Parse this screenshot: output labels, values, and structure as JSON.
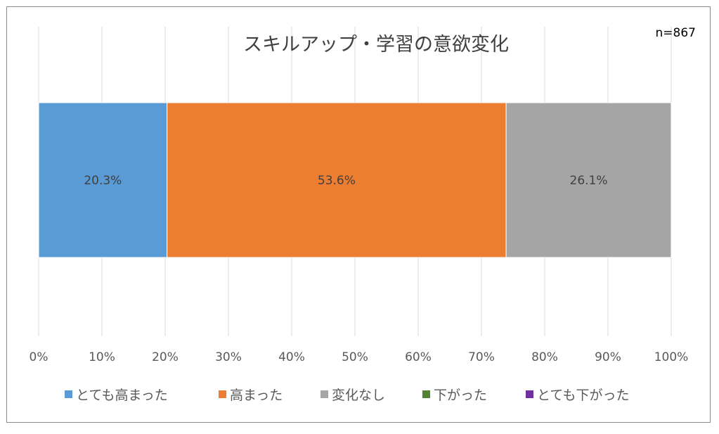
{
  "chart_data": {
    "type": "bar",
    "orientation": "horizontal",
    "stacked": true,
    "title": "スキルアップ・学習の意欲変化",
    "note": "n=867",
    "xlim": [
      0,
      100
    ],
    "x_ticks": [
      "0%",
      "10%",
      "20%",
      "30%",
      "40%",
      "50%",
      "60%",
      "70%",
      "80%",
      "90%",
      "100%"
    ],
    "grid": true,
    "legend_position": "bottom",
    "series": [
      {
        "name": "とても高まった",
        "value": 20.3,
        "label": "20.3%",
        "color": "#5b9bd5"
      },
      {
        "name": "高まった",
        "value": 53.6,
        "label": "53.6%",
        "color": "#ed7d31"
      },
      {
        "name": "変化なし",
        "value": 26.1,
        "label": "26.1%",
        "color": "#a5a5a5"
      },
      {
        "name": "下がった",
        "value": 0,
        "label": "",
        "color": "#548235"
      },
      {
        "name": "とても下がった",
        "value": 0,
        "label": "",
        "color": "#7030a0"
      }
    ]
  }
}
